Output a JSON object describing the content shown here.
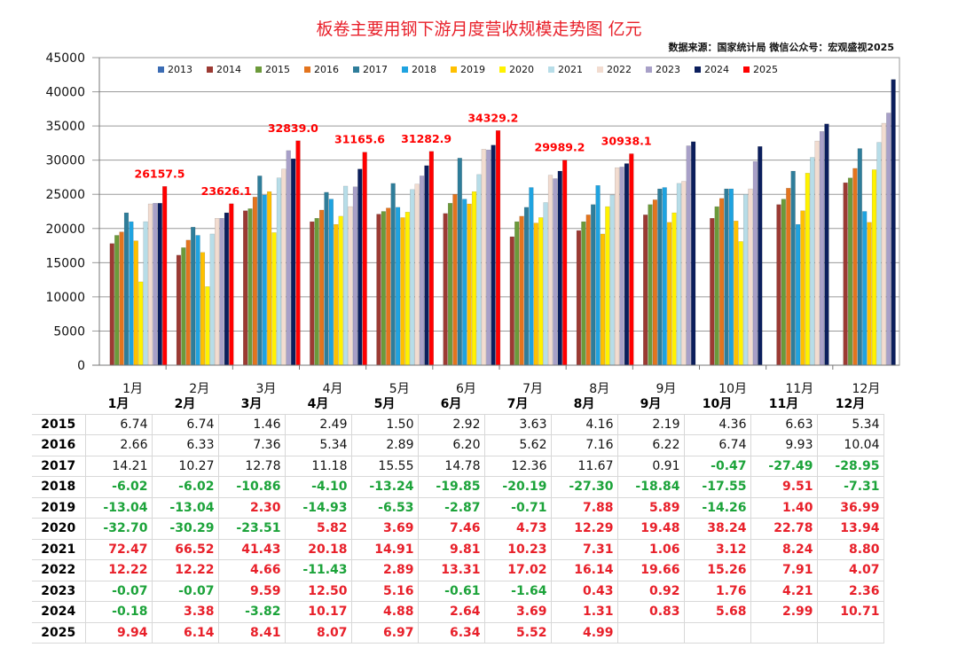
{
  "title": "板卷主要用钢下游月度营收规模走势图  亿元",
  "source": "数据来源：国家统计局  微信公众号：宏观盛视2025",
  "chart_data": {
    "type": "bar",
    "title": "板卷主要用钢下游月度营收规模走势图  亿元",
    "categories": [
      "1月",
      "2月",
      "3月",
      "4月",
      "5月",
      "6月",
      "7月",
      "8月",
      "9月",
      "10月",
      "11月",
      "12月"
    ],
    "ylim": [
      0,
      45000
    ],
    "yticks": [
      "0",
      "5000",
      "10000",
      "15000",
      "20000",
      "25000",
      "30000",
      "35000",
      "40000",
      "45000"
    ],
    "grid": true,
    "legend": "top",
    "series": [
      {
        "name": "2013",
        "color": "#3b6cb4",
        "values": [
          null,
          null,
          null,
          null,
          null,
          null,
          null,
          null,
          null,
          null,
          null,
          null
        ]
      },
      {
        "name": "2014",
        "color": "#9c3a33",
        "values": [
          17800,
          16100,
          22600,
          21000,
          22100,
          22200,
          18800,
          19700,
          22000,
          21500,
          23500,
          26700
        ]
      },
      {
        "name": "2015",
        "color": "#6c9a3a",
        "values": [
          19000,
          17200,
          22900,
          21500,
          22500,
          23700,
          21000,
          21000,
          23500,
          23200,
          24300,
          27400
        ]
      },
      {
        "name": "2016",
        "color": "#e3741e",
        "values": [
          19500,
          18300,
          24600,
          22700,
          23000,
          25000,
          21800,
          22000,
          24200,
          24400,
          25900,
          28800
        ]
      },
      {
        "name": "2017",
        "color": "#2e7d9a",
        "values": [
          22300,
          20200,
          27700,
          25300,
          26600,
          30300,
          23100,
          23500,
          25800,
          25800,
          28400,
          31700
        ]
      },
      {
        "name": "2018",
        "color": "#1fa3e0",
        "values": [
          21000,
          19000,
          24900,
          24300,
          23100,
          24300,
          26000,
          26300,
          26000,
          25800,
          20600,
          22500
        ]
      },
      {
        "name": "2019",
        "color": "#ffc000",
        "values": [
          18200,
          16500,
          25400,
          20600,
          21600,
          23600,
          20800,
          19200,
          20900,
          21100,
          22600,
          20900
        ]
      },
      {
        "name": "2020",
        "color": "#fff200",
        "values": [
          12200,
          11500,
          19400,
          21800,
          22400,
          25400,
          21600,
          23200,
          22300,
          18100,
          28100,
          28600
        ]
      },
      {
        "name": "2021",
        "color": "#b7dde8",
        "values": [
          21000,
          19200,
          27400,
          26200,
          25700,
          27900,
          23800,
          24900,
          26600,
          25000,
          30400,
          32600
        ]
      },
      {
        "name": "2022",
        "color": "#f2dcd0",
        "values": [
          23600,
          21500,
          28700,
          23200,
          26500,
          31600,
          27800,
          28900,
          26900,
          25800,
          32800,
          35400
        ]
      },
      {
        "name": "2023",
        "color": "#a8a0c8",
        "values": [
          23700,
          21500,
          31400,
          26100,
          27700,
          31500,
          27300,
          29000,
          32100,
          29800,
          34200,
          36900
        ]
      },
      {
        "name": "2024",
        "color": "#0b1e5c",
        "values": [
          23700,
          22300,
          30200,
          28700,
          29200,
          32200,
          28400,
          29500,
          32700,
          32000,
          35300,
          41800
        ]
      },
      {
        "name": "2025",
        "color": "#ff0000",
        "values": [
          26157.5,
          23626.1,
          32839.0,
          31165.6,
          31282.9,
          34329.2,
          29989.2,
          30938.1,
          null,
          null,
          null,
          null
        ]
      }
    ],
    "data_labels": [
      "26157.5",
      "23626.1",
      "32839.0",
      "31165.6",
      "31282.9",
      "34329.2",
      "29989.2",
      "30938.1"
    ]
  },
  "table": {
    "headers": [
      "1月",
      "2月",
      "3月",
      "4月",
      "5月",
      "6月",
      "7月",
      "8月",
      "9月",
      "10月",
      "11月",
      "12月"
    ],
    "rows": [
      {
        "year": "2015",
        "cells": [
          "6.74",
          "6.74",
          "1.46",
          "2.49",
          "1.50",
          "2.92",
          "3.63",
          "4.16",
          "2.19",
          "4.36",
          "6.63",
          "5.34"
        ]
      },
      {
        "year": "2016",
        "cells": [
          "2.66",
          "6.33",
          "7.36",
          "5.34",
          "2.89",
          "6.20",
          "5.62",
          "7.16",
          "6.22",
          "6.74",
          "9.93",
          "10.04"
        ]
      },
      {
        "year": "2017",
        "cells": [
          "14.21",
          "10.27",
          "12.78",
          "11.18",
          "15.55",
          "14.78",
          "12.36",
          "11.67",
          "0.91",
          "-0.47",
          "-27.49",
          "-28.95"
        ]
      },
      {
        "year": "2018",
        "cells": [
          "-6.02",
          "-6.02",
          "-10.86",
          "-4.10",
          "-13.24",
          "-19.85",
          "-20.19",
          "-27.30",
          "-18.84",
          "-17.55",
          "9.51",
          "-7.31"
        ]
      },
      {
        "year": "2019",
        "cells": [
          "-13.04",
          "-13.04",
          "2.30",
          "-14.93",
          "-6.53",
          "-2.87",
          "-0.71",
          "7.88",
          "5.89",
          "-14.26",
          "1.40",
          "36.99"
        ]
      },
      {
        "year": "2020",
        "cells": [
          "-32.70",
          "-30.29",
          "-23.51",
          "5.82",
          "3.69",
          "7.46",
          "4.73",
          "12.29",
          "19.48",
          "38.24",
          "22.78",
          "13.94"
        ]
      },
      {
        "year": "2021",
        "cells": [
          "72.47",
          "66.52",
          "41.43",
          "20.18",
          "14.91",
          "9.81",
          "10.23",
          "7.31",
          "1.06",
          "3.12",
          "8.24",
          "8.80"
        ]
      },
      {
        "year": "2022",
        "cells": [
          "12.22",
          "12.22",
          "4.66",
          "-11.43",
          "2.89",
          "13.31",
          "17.02",
          "16.14",
          "19.66",
          "15.26",
          "7.91",
          "4.07"
        ]
      },
      {
        "year": "2023",
        "cells": [
          "-0.07",
          "-0.07",
          "9.59",
          "12.50",
          "5.16",
          "-0.61",
          "-1.64",
          "0.43",
          "0.92",
          "1.76",
          "4.21",
          "2.36"
        ]
      },
      {
        "year": "2024",
        "cells": [
          "-0.18",
          "3.38",
          "-3.82",
          "10.17",
          "4.88",
          "2.64",
          "3.69",
          "1.31",
          "0.83",
          "5.68",
          "2.99",
          "10.71"
        ]
      },
      {
        "year": "2025",
        "cells": [
          "9.94",
          "6.14",
          "8.41",
          "8.07",
          "6.97",
          "6.34",
          "5.52",
          "4.99",
          "",
          "",
          "",
          ""
        ]
      }
    ]
  }
}
